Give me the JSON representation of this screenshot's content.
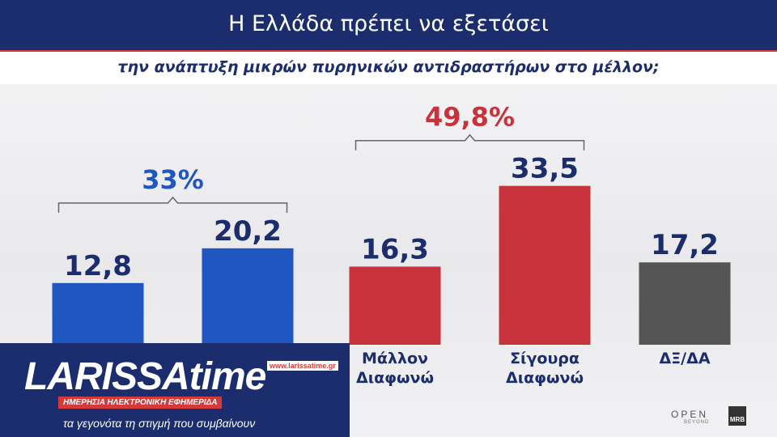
{
  "header": {
    "title": "Η Ελλάδα πρέπει να εξετάσει",
    "subtitle": "την ανάπτυξη μικρών πυρηνικών αντιδραστήρων στο μέλλον;"
  },
  "chart_data": {
    "type": "bar",
    "categories": [
      "",
      "",
      "Μάλλον Διαφωνώ",
      "Σίγουρα Διαφωνώ",
      "ΔΞ/ΔΑ"
    ],
    "category_lines": [
      [],
      [],
      [
        "Μάλλον",
        "Διαφωνώ"
      ],
      [
        "Σίγουρα",
        "Διαφωνώ"
      ],
      [
        "ΔΞ/ΔΑ"
      ]
    ],
    "values": [
      12.8,
      20.2,
      16.3,
      33.5,
      17.2
    ],
    "value_labels": [
      "12,8",
      "20,2",
      "16,3",
      "33,5",
      "17,2"
    ],
    "bar_colors": [
      "#1f56c2",
      "#1f56c2",
      "#c8323a",
      "#c8323a",
      "#555555"
    ],
    "groups": [
      {
        "label": "33%",
        "from": 0,
        "to": 1,
        "color": "#1f56c2"
      },
      {
        "label": "49,8%",
        "from": 2,
        "to": 3,
        "color": "#c8323a"
      }
    ],
    "label_color": "#1c2d6e",
    "ylim": [
      0,
      40
    ]
  },
  "logo": {
    "main": "LARISSAtime",
    "url": "www.larissatime.gr",
    "tag": "ΗΜΕΡΗΣΙΑ ΗΛΕΚΤΡΟΝΙΚΗ ΕΦΗΜΕΡΙΔΑ",
    "tagline": "τα γεγονότα τη στιγμή που συμβαίνουν"
  },
  "brand": {
    "open": "OPEN",
    "beyond": "BEYOND",
    "mrb": "MRB"
  }
}
